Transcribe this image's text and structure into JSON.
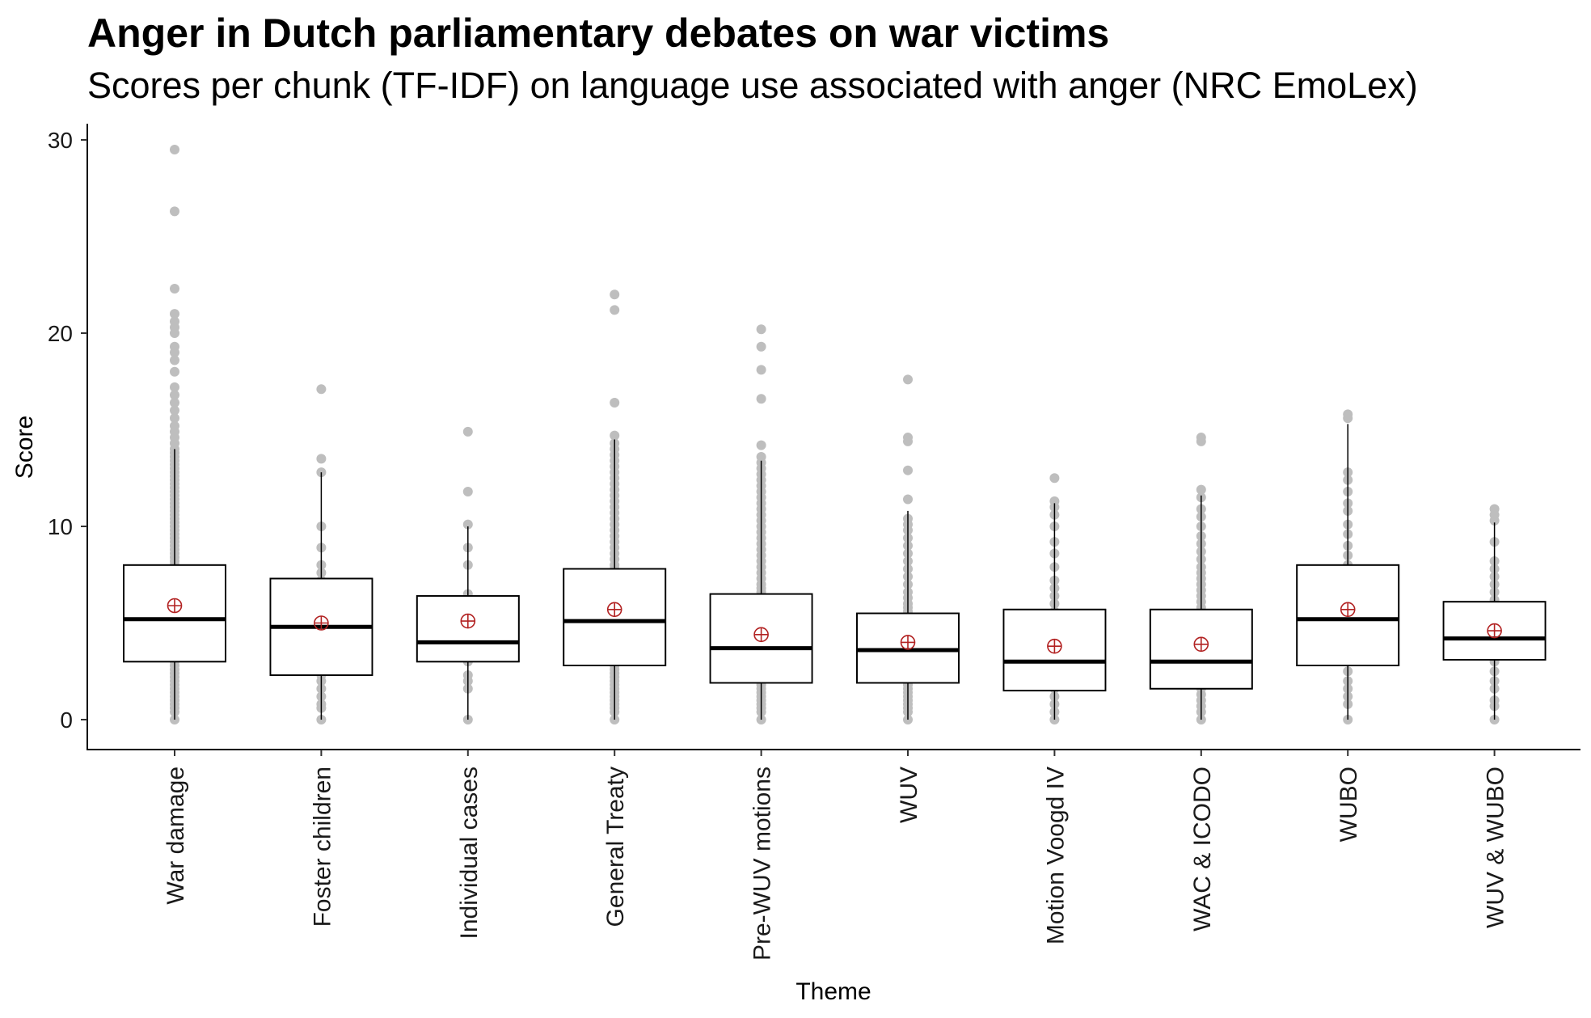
{
  "chart_data": {
    "type": "boxplot",
    "title": "Anger in Dutch parliamentary debates on war victims",
    "subtitle": "Scores per chunk (TF-IDF) on language use associated with anger (NRC EmoLex)",
    "xlabel": "Theme",
    "ylabel": "Score",
    "ylim": [
      -1.5,
      31
    ],
    "yticks": [
      0,
      10,
      20,
      30
    ],
    "grid": false,
    "legend": "none",
    "categories": [
      "War damage",
      "Foster children",
      "Individual cases",
      "General Treaty",
      "Pre-WUV motions",
      "WUV",
      "Motion Voogd IV",
      "WAC & ICODO",
      "WUBO",
      "WUV & WUBO"
    ],
    "boxes": [
      {
        "category": "War damage",
        "q1": 3.0,
        "median": 5.2,
        "q3": 8.0,
        "whisker_low": 0.0,
        "whisker_high": 14.0,
        "mean": 5.9
      },
      {
        "category": "Foster children",
        "q1": 2.3,
        "median": 4.8,
        "q3": 7.3,
        "whisker_low": 0.0,
        "whisker_high": 12.8,
        "mean": 5.0
      },
      {
        "category": "Individual cases",
        "q1": 3.0,
        "median": 4.0,
        "q3": 6.4,
        "whisker_low": 0.0,
        "whisker_high": 10.0,
        "mean": 5.1
      },
      {
        "category": "General Treaty",
        "q1": 2.8,
        "median": 5.1,
        "q3": 7.8,
        "whisker_low": 0.0,
        "whisker_high": 14.5,
        "mean": 5.7
      },
      {
        "category": "Pre-WUV motions",
        "q1": 1.9,
        "median": 3.7,
        "q3": 6.5,
        "whisker_low": 0.0,
        "whisker_high": 13.4,
        "mean": 4.4
      },
      {
        "category": "WUV",
        "q1": 1.9,
        "median": 3.6,
        "q3": 5.5,
        "whisker_low": 0.0,
        "whisker_high": 10.8,
        "mean": 4.0
      },
      {
        "category": "Motion Voogd IV",
        "q1": 1.5,
        "median": 3.0,
        "q3": 5.7,
        "whisker_low": 0.0,
        "whisker_high": 11.2,
        "mean": 3.8
      },
      {
        "category": "WAC & ICODO",
        "q1": 1.6,
        "median": 3.0,
        "q3": 5.7,
        "whisker_low": 0.0,
        "whisker_high": 11.6,
        "mean": 3.9
      },
      {
        "category": "WUBO",
        "q1": 2.8,
        "median": 5.2,
        "q3": 8.0,
        "whisker_low": 0.0,
        "whisker_high": 15.3,
        "mean": 5.7
      },
      {
        "category": "WUV & WUBO",
        "q1": 3.1,
        "median": 4.2,
        "q3": 6.1,
        "whisker_low": 0.0,
        "whisker_high": 10.2,
        "mean": 4.6
      }
    ],
    "points": [
      {
        "category": "War damage",
        "values": [
          0.0,
          0.4,
          0.6,
          0.8,
          1.0,
          1.2,
          1.4,
          1.6,
          1.8,
          2.0,
          2.2,
          2.4,
          2.6,
          2.8,
          3.0,
          3.2,
          3.4,
          3.6,
          3.8,
          4.0,
          4.2,
          4.4,
          4.6,
          4.8,
          5.0,
          5.2,
          5.4,
          5.6,
          5.8,
          6.0,
          6.2,
          6.4,
          6.6,
          6.8,
          7.0,
          7.2,
          7.4,
          7.6,
          7.8,
          8.0,
          8.2,
          8.4,
          8.6,
          8.8,
          9.0,
          9.2,
          9.4,
          9.6,
          9.8,
          10.0,
          10.2,
          10.4,
          10.6,
          10.8,
          11.0,
          11.2,
          11.4,
          11.6,
          11.8,
          12.0,
          12.2,
          12.4,
          12.6,
          12.8,
          13.0,
          13.2,
          13.4,
          13.6,
          13.8,
          14.0,
          14.3,
          14.6,
          14.9,
          15.2,
          15.6,
          16.0,
          16.4,
          16.8,
          17.2,
          18.0,
          18.6,
          19.0,
          19.3,
          20.0,
          20.3,
          20.6,
          21.0,
          22.3,
          26.3,
          29.5
        ]
      },
      {
        "category": "Foster children",
        "values": [
          0.0,
          0.6,
          0.8,
          1.2,
          1.6,
          2.0,
          2.3,
          2.6,
          3.0,
          3.3,
          3.6,
          4.0,
          4.3,
          4.6,
          5.0,
          5.3,
          5.6,
          6.0,
          6.4,
          6.8,
          7.2,
          7.6,
          8.0,
          8.9,
          10.0,
          12.8,
          13.5,
          17.1
        ]
      },
      {
        "category": "Individual cases",
        "values": [
          0.0,
          1.6,
          2.0,
          2.3,
          3.0,
          3.4,
          4.0,
          4.4,
          4.8,
          5.2,
          5.6,
          6.0,
          6.5,
          8.0,
          8.9,
          10.1,
          11.8,
          14.9
        ]
      },
      {
        "category": "General Treaty",
        "values": [
          0.0,
          0.4,
          0.6,
          0.8,
          1.0,
          1.2,
          1.4,
          1.6,
          1.8,
          2.0,
          2.2,
          2.4,
          2.6,
          2.8,
          3.0,
          3.2,
          3.4,
          3.6,
          3.8,
          4.0,
          4.2,
          4.4,
          4.6,
          4.8,
          5.0,
          5.2,
          5.4,
          5.6,
          5.8,
          6.0,
          6.2,
          6.4,
          6.6,
          6.8,
          7.0,
          7.2,
          7.4,
          7.6,
          7.8,
          8.0,
          8.3,
          8.6,
          8.9,
          9.2,
          9.5,
          9.8,
          10.1,
          10.4,
          10.7,
          11.0,
          11.3,
          11.6,
          11.9,
          12.2,
          12.5,
          12.8,
          13.1,
          13.4,
          13.7,
          14.0,
          14.3,
          14.7,
          16.4,
          21.2,
          22.0
        ]
      },
      {
        "category": "Pre-WUV motions",
        "values": [
          0.0,
          0.4,
          0.6,
          0.8,
          1.0,
          1.2,
          1.4,
          1.6,
          1.8,
          2.0,
          2.2,
          2.4,
          2.6,
          2.8,
          3.0,
          3.2,
          3.4,
          3.6,
          3.8,
          4.0,
          4.2,
          4.4,
          4.6,
          4.8,
          5.0,
          5.2,
          5.4,
          5.6,
          5.8,
          6.0,
          6.2,
          6.4,
          6.6,
          6.8,
          7.0,
          7.3,
          7.6,
          7.9,
          8.2,
          8.5,
          8.8,
          9.1,
          9.4,
          9.7,
          10.0,
          10.3,
          10.6,
          10.9,
          11.2,
          11.5,
          11.8,
          12.1,
          12.4,
          12.7,
          13.0,
          13.3,
          13.6,
          14.2,
          16.6,
          18.1,
          19.3,
          20.2
        ]
      },
      {
        "category": "WUV",
        "values": [
          0.0,
          0.4,
          0.6,
          0.8,
          1.0,
          1.2,
          1.4,
          1.6,
          1.8,
          2.0,
          2.2,
          2.4,
          2.6,
          2.8,
          3.0,
          3.2,
          3.4,
          3.6,
          3.8,
          4.0,
          4.2,
          4.4,
          4.6,
          4.8,
          5.0,
          5.2,
          5.4,
          5.6,
          5.8,
          6.0,
          6.3,
          6.6,
          7.0,
          7.4,
          7.8,
          8.2,
          8.6,
          9.0,
          9.4,
          9.8,
          10.1,
          10.4,
          11.4,
          12.9,
          14.4,
          14.6,
          17.6
        ]
      },
      {
        "category": "Motion Voogd IV",
        "values": [
          0.0,
          0.4,
          0.8,
          1.2,
          1.6,
          2.0,
          2.4,
          2.8,
          3.2,
          3.6,
          4.0,
          4.4,
          4.8,
          5.2,
          5.6,
          6.0,
          6.4,
          6.8,
          7.2,
          7.9,
          8.6,
          9.2,
          10.0,
          10.6,
          11.0,
          11.3,
          12.5
        ]
      },
      {
        "category": "WAC & ICODO",
        "values": [
          0.0,
          0.4,
          0.7,
          1.0,
          1.3,
          1.6,
          1.9,
          2.2,
          2.5,
          2.8,
          3.1,
          3.4,
          3.7,
          4.0,
          4.3,
          4.6,
          4.9,
          5.2,
          5.5,
          5.8,
          6.1,
          6.4,
          6.7,
          7.0,
          7.3,
          7.6,
          7.9,
          8.3,
          8.7,
          9.1,
          9.5,
          10.0,
          10.5,
          10.9,
          11.5,
          11.9,
          14.4,
          14.6
        ]
      },
      {
        "category": "WUBO",
        "values": [
          0.0,
          0.8,
          1.2,
          1.6,
          2.0,
          2.5,
          3.0,
          3.5,
          4.0,
          4.5,
          5.0,
          5.5,
          6.0,
          6.5,
          7.0,
          7.5,
          8.0,
          8.5,
          9.0,
          9.6,
          10.1,
          10.8,
          11.2,
          11.8,
          12.4,
          12.8,
          15.6,
          15.8
        ]
      },
      {
        "category": "WUV & WUBO",
        "values": [
          0.0,
          0.7,
          1.0,
          1.6,
          2.0,
          2.5,
          3.0,
          3.4,
          3.8,
          4.2,
          4.6,
          5.0,
          5.4,
          5.8,
          6.2,
          6.6,
          7.0,
          7.4,
          7.8,
          8.2,
          9.2,
          10.3,
          10.6,
          10.9
        ]
      }
    ],
    "colors": {
      "box_fill": "#ffffff",
      "box_line": "#000000",
      "points": "#bebebe",
      "mean_marker": "#b22222"
    }
  }
}
